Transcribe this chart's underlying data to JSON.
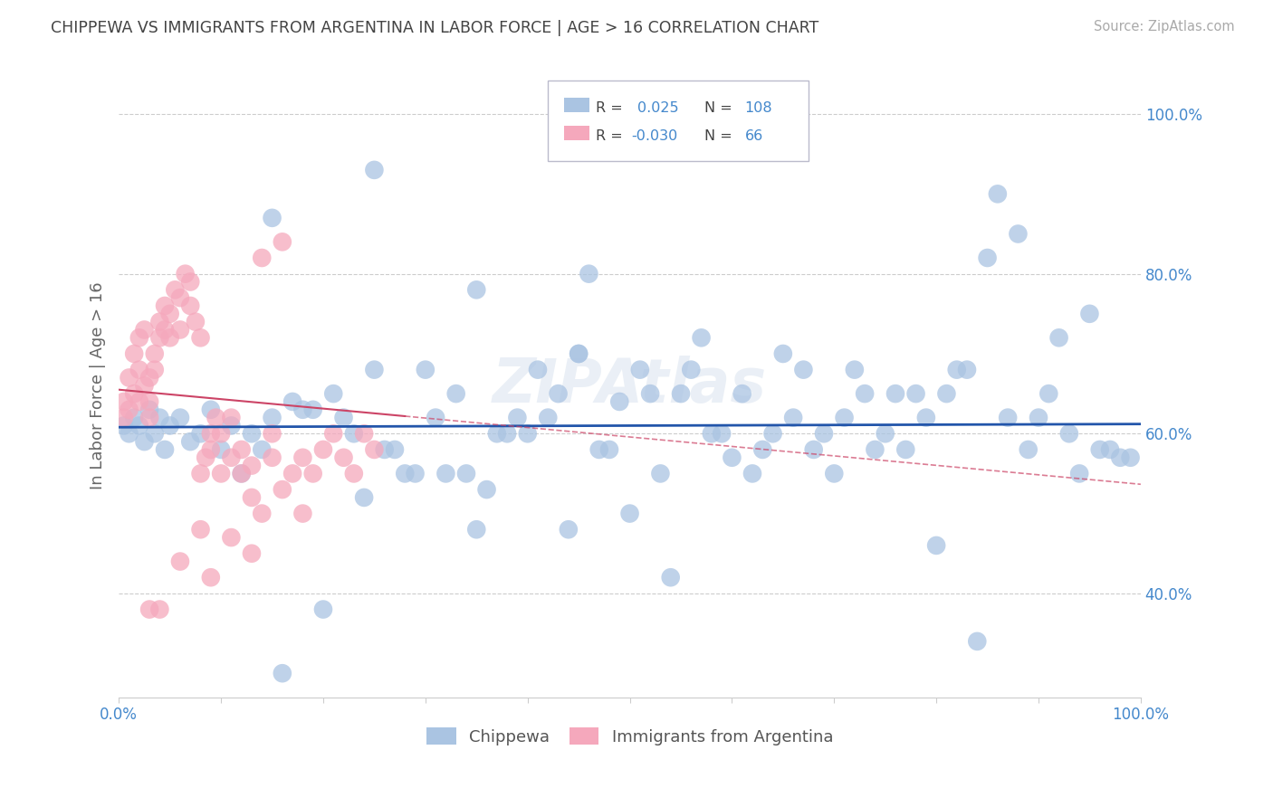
{
  "title": "CHIPPEWA VS IMMIGRANTS FROM ARGENTINA IN LABOR FORCE | AGE > 16 CORRELATION CHART",
  "source": "Source: ZipAtlas.com",
  "ylabel": "In Labor Force | Age > 16",
  "legend_label_blue": "Chippewa",
  "legend_label_pink": "Immigrants from Argentina",
  "R_blue": 0.025,
  "N_blue": 108,
  "R_pink": -0.03,
  "N_pink": 66,
  "blue_color": "#aac4e2",
  "pink_color": "#f5a8bc",
  "blue_line_color": "#2255aa",
  "pink_line_color": "#cc4466",
  "background_color": "#ffffff",
  "grid_color": "#cccccc",
  "title_color": "#444444",
  "tick_color": "#4488cc",
  "xmin": 0.0,
  "xmax": 1.0,
  "ymin": 0.27,
  "ymax": 1.05,
  "blue_scatter_x": [
    0.005,
    0.01,
    0.015,
    0.02,
    0.025,
    0.03,
    0.035,
    0.04,
    0.045,
    0.05,
    0.06,
    0.07,
    0.08,
    0.09,
    0.1,
    0.11,
    0.12,
    0.13,
    0.14,
    0.15,
    0.17,
    0.19,
    0.21,
    0.23,
    0.25,
    0.27,
    0.29,
    0.31,
    0.33,
    0.35,
    0.37,
    0.39,
    0.41,
    0.43,
    0.45,
    0.47,
    0.49,
    0.51,
    0.53,
    0.55,
    0.57,
    0.59,
    0.61,
    0.63,
    0.65,
    0.67,
    0.69,
    0.71,
    0.73,
    0.75,
    0.77,
    0.79,
    0.81,
    0.83,
    0.85,
    0.87,
    0.89,
    0.91,
    0.93,
    0.95,
    0.97,
    0.99,
    0.3,
    0.32,
    0.4,
    0.5,
    0.6,
    0.7,
    0.8,
    0.9,
    0.18,
    0.22,
    0.26,
    0.34,
    0.38,
    0.42,
    0.48,
    0.52,
    0.58,
    0.62,
    0.68,
    0.72,
    0.78,
    0.82,
    0.88,
    0.92,
    0.96,
    0.2,
    0.24,
    0.28,
    0.36,
    0.44,
    0.54,
    0.64,
    0.74,
    0.84,
    0.94,
    0.16,
    0.46,
    0.56,
    0.66,
    0.76,
    0.86,
    0.98,
    0.15,
    0.25,
    0.35,
    0.45
  ],
  "blue_scatter_y": [
    0.61,
    0.6,
    0.62,
    0.61,
    0.59,
    0.63,
    0.6,
    0.62,
    0.58,
    0.61,
    0.62,
    0.59,
    0.6,
    0.63,
    0.58,
    0.61,
    0.55,
    0.6,
    0.58,
    0.62,
    0.64,
    0.63,
    0.65,
    0.6,
    0.68,
    0.58,
    0.55,
    0.62,
    0.65,
    0.48,
    0.6,
    0.62,
    0.68,
    0.65,
    0.7,
    0.58,
    0.64,
    0.68,
    0.55,
    0.65,
    0.72,
    0.6,
    0.65,
    0.58,
    0.7,
    0.68,
    0.6,
    0.62,
    0.65,
    0.6,
    0.58,
    0.62,
    0.65,
    0.68,
    0.82,
    0.62,
    0.58,
    0.65,
    0.6,
    0.75,
    0.58,
    0.57,
    0.68,
    0.55,
    0.6,
    0.5,
    0.57,
    0.55,
    0.46,
    0.62,
    0.63,
    0.62,
    0.58,
    0.55,
    0.6,
    0.62,
    0.58,
    0.65,
    0.6,
    0.55,
    0.58,
    0.68,
    0.65,
    0.68,
    0.85,
    0.72,
    0.58,
    0.38,
    0.52,
    0.55,
    0.53,
    0.48,
    0.42,
    0.6,
    0.58,
    0.34,
    0.55,
    0.3,
    0.8,
    0.68,
    0.62,
    0.65,
    0.9,
    0.57,
    0.87,
    0.93,
    0.78,
    0.7
  ],
  "pink_scatter_x": [
    0.005,
    0.005,
    0.01,
    0.01,
    0.015,
    0.015,
    0.02,
    0.02,
    0.02,
    0.025,
    0.025,
    0.03,
    0.03,
    0.03,
    0.035,
    0.035,
    0.04,
    0.04,
    0.045,
    0.045,
    0.05,
    0.05,
    0.055,
    0.06,
    0.06,
    0.065,
    0.07,
    0.07,
    0.075,
    0.08,
    0.08,
    0.085,
    0.09,
    0.09,
    0.095,
    0.1,
    0.1,
    0.11,
    0.11,
    0.12,
    0.12,
    0.13,
    0.13,
    0.14,
    0.15,
    0.15,
    0.16,
    0.17,
    0.18,
    0.19,
    0.2,
    0.21,
    0.22,
    0.23,
    0.24,
    0.25,
    0.14,
    0.16,
    0.18,
    0.08,
    0.06,
    0.09,
    0.11,
    0.13,
    0.04,
    0.03
  ],
  "pink_scatter_y": [
    0.64,
    0.62,
    0.63,
    0.67,
    0.65,
    0.7,
    0.68,
    0.72,
    0.64,
    0.66,
    0.73,
    0.67,
    0.64,
    0.62,
    0.7,
    0.68,
    0.74,
    0.72,
    0.76,
    0.73,
    0.75,
    0.72,
    0.78,
    0.77,
    0.73,
    0.8,
    0.79,
    0.76,
    0.74,
    0.55,
    0.72,
    0.57,
    0.58,
    0.6,
    0.62,
    0.55,
    0.6,
    0.57,
    0.62,
    0.55,
    0.58,
    0.52,
    0.56,
    0.5,
    0.6,
    0.57,
    0.53,
    0.55,
    0.57,
    0.55,
    0.58,
    0.6,
    0.57,
    0.55,
    0.6,
    0.58,
    0.82,
    0.84,
    0.5,
    0.48,
    0.44,
    0.42,
    0.47,
    0.45,
    0.38,
    0.38
  ],
  "pink_line_x": [
    0.0,
    0.38
  ],
  "pink_line_y_start": 0.655,
  "pink_line_y_end": 0.61,
  "blue_line_y_start": 0.608,
  "blue_line_y_end": 0.612
}
